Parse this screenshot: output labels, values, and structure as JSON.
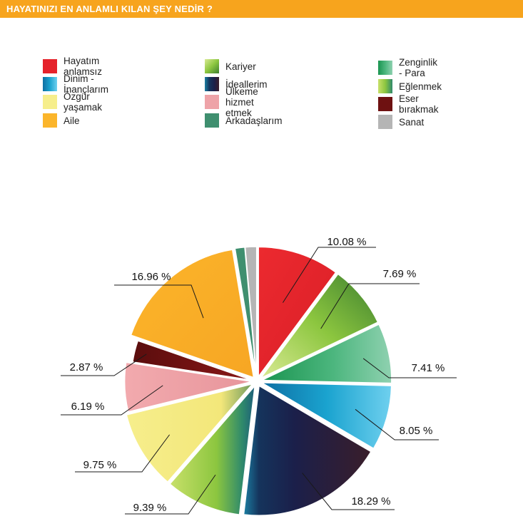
{
  "header": {
    "title": "HAYATINIZI EN ANLAMLI KILAN ŞEY NEDİR ?"
  },
  "chart_data": {
    "type": "pie",
    "title": "HAYATINIZI EN ANLAMLI KILAN ŞEY NEDİR ?",
    "unit": "%",
    "legend_position": "top",
    "categories": [
      "Hayatım anlamsız",
      "Dinim - İnançlarım",
      "Özgür yaşamak",
      "Aile",
      "Kariyer",
      "İdeallerim",
      "Ülkeme hizmet etmek",
      "Arkadaşlarım",
      "Zenginlik - Para",
      "Eğlenmek",
      "Eser bırakmak",
      "Sanat"
    ],
    "colors": [
      "#e5222b",
      "#1aa3cf",
      "#f6ee8c",
      "#fbb52b",
      "#8cc63f",
      "#1b1f4a",
      "#eea3a8",
      "#3f8f6f",
      "#2ea86a",
      "#a6cf48",
      "#6e1111",
      "#b5b5b5"
    ],
    "slices": [
      {
        "name": "Hayatım anlamsız",
        "value": 10.08,
        "label": "10.08 %"
      },
      {
        "name": "Kariyer",
        "value": 7.69,
        "label": "7.69 %"
      },
      {
        "name": "Zenginlik - Para",
        "value": 7.41,
        "label": "7.41 %"
      },
      {
        "name": "Dinim - İnançlarım",
        "value": 8.05,
        "label": "8.05 %"
      },
      {
        "name": "İdeallerim",
        "value": 18.29,
        "label": "18.29 %"
      },
      {
        "name": "Eğlenmek",
        "value": 9.39,
        "label": "9.39 %"
      },
      {
        "name": "Özgür yaşamak",
        "value": 9.75,
        "label": "9.75 %"
      },
      {
        "name": "Ülkeme hizmet etmek",
        "value": 6.19,
        "label": "6.19 %"
      },
      {
        "name": "Eser bırakmak",
        "value": 2.87,
        "label": "2.87 %"
      },
      {
        "name": "Aile",
        "value": 16.96,
        "label": "16.96 %"
      },
      {
        "name": "Arkadaşlarım",
        "value": 1.2,
        "label": ""
      },
      {
        "name": "Sanat",
        "value": 1.4,
        "label": ""
      }
    ]
  }
}
